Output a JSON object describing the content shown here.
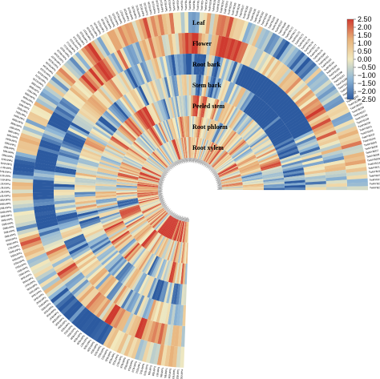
{
  "chart_data": {
    "type": "heatmap",
    "layout": "circular",
    "gene_count": 216,
    "rows": [
      "Leaf",
      "Flower",
      "Root bark",
      "Stem bark",
      "Peeled stem",
      "Root phloem",
      "Root xylem"
    ],
    "gene_prefix": "TwMYB",
    "colorbar": {
      "ticks": [
        "2.50",
        "2.00",
        "1.50",
        "1.00",
        "0.50",
        "0.00",
        "−0.50",
        "−1.00",
        "−1.50",
        "−2.00",
        "−2.50"
      ],
      "range": [
        -2.5,
        2.5
      ],
      "colors": [
        "#2c5aa0",
        "#8fb6d6",
        "#f2eac0",
        "#e8b27a",
        "#cf3a2f"
      ]
    }
  }
}
